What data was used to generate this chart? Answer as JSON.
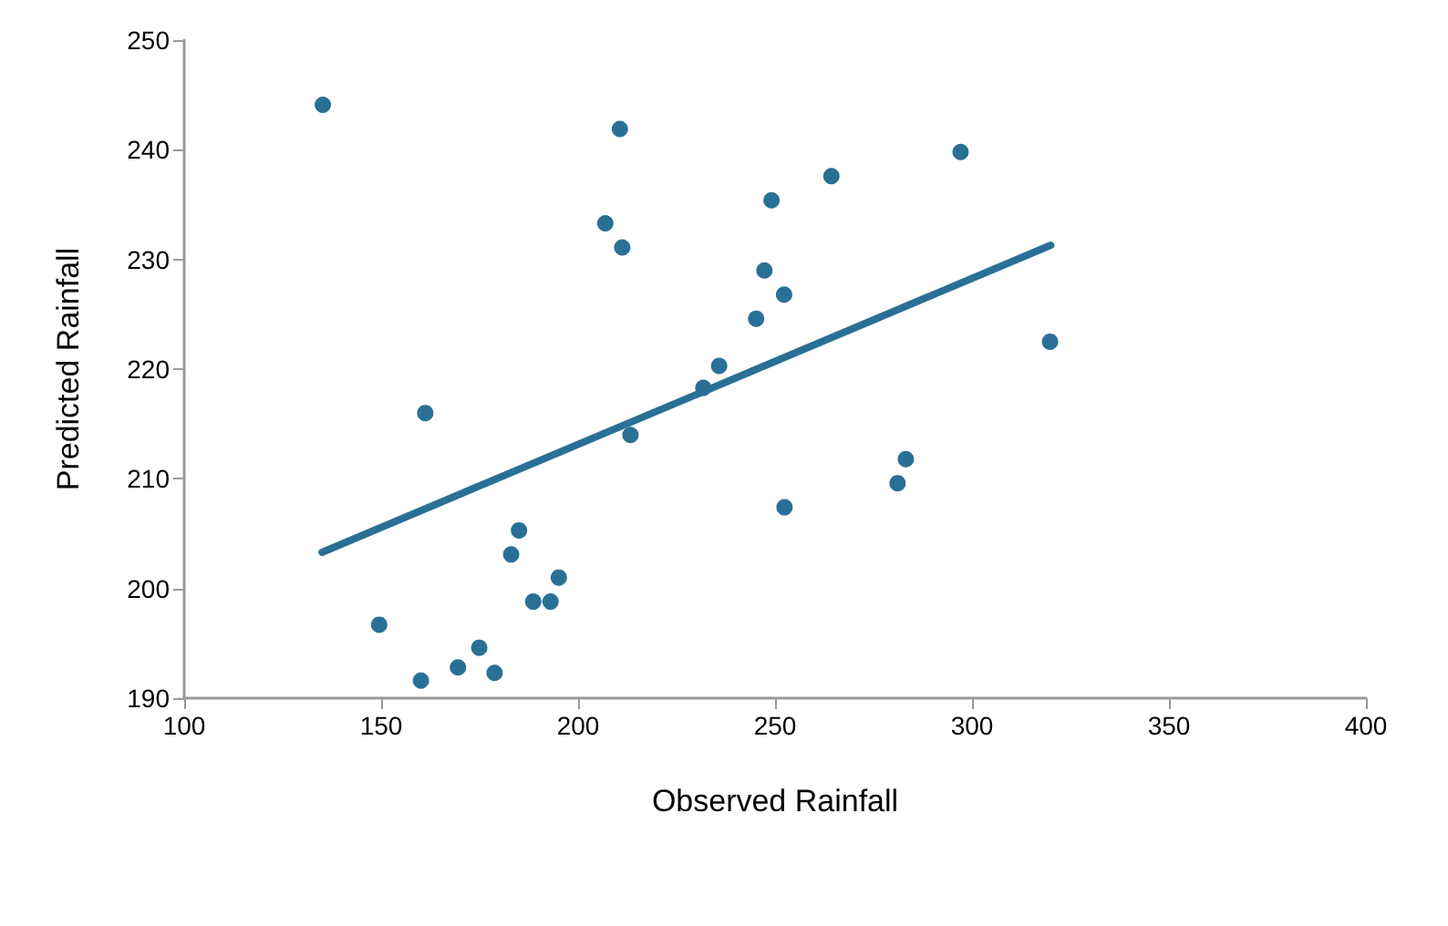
{
  "chart_data": {
    "type": "scatter",
    "xlabel": "Observed Rainfall",
    "ylabel": "Predicted Rainfall",
    "xlim": [
      100,
      400
    ],
    "xticks": [
      100,
      150,
      200,
      250,
      300,
      350,
      400
    ],
    "ylim": [
      190,
      250
    ],
    "yticks": [
      190,
      200,
      210,
      220,
      230,
      240,
      250
    ],
    "grid": false,
    "marker": "circle",
    "series": [
      {
        "color": "#2a7096",
        "x": [
          135.2,
          210.6,
          206.9,
          211.2,
          161.2,
          213.3,
          185.0,
          183.0,
          195.1,
          188.6,
          193.0,
          149.5,
          174.9,
          169.5,
          178.8,
          160.1,
          235.8,
          231.8,
          245.2,
          247.3,
          252.3,
          249.1,
          252.4,
          264.3,
          297.1,
          319.8,
          283.2,
          281.1
        ],
        "values": [
          244.1,
          241.9,
          233.3,
          231.1,
          216.0,
          214.0,
          205.3,
          203.1,
          201.0,
          198.8,
          198.8,
          196.7,
          194.6,
          192.8,
          192.3,
          191.6,
          220.3,
          218.3,
          224.6,
          229.0,
          226.8,
          235.4,
          207.4,
          237.6,
          239.8,
          222.5,
          211.8,
          209.6
        ]
      },
      {
        "type": "line",
        "color": "#2a7096",
        "x": [
          135,
          320
        ],
        "values": [
          203.3,
          231.3
        ],
        "marker": "none"
      }
    ]
  }
}
